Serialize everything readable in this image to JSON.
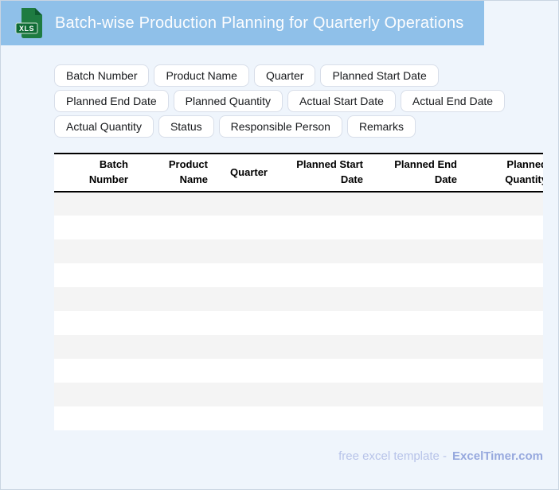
{
  "header": {
    "title": "Batch-wise Production Planning for Quarterly Operations",
    "file_badge": "XLS"
  },
  "colors": {
    "header_bg": "#8FC0E9",
    "page_bg": "#EFF5FC",
    "icon_green": "#1E7B41",
    "icon_band": "#0F6B35",
    "stripe": "#F4F4F4",
    "footer_text": "#B7C3E9",
    "footer_brand": "#97A9DE"
  },
  "field_chips": [
    "Batch Number",
    "Product Name",
    "Quarter",
    "Planned Start Date",
    "Planned End Date",
    "Planned Quantity",
    "Actual Start Date",
    "Actual End Date",
    "Actual Quantity",
    "Status",
    "Responsible Person",
    "Remarks"
  ],
  "table": {
    "columns": [
      "Batch Number",
      "Product Name",
      "Quarter",
      "Planned Start Date",
      "Planned End Date",
      "Planned Quantity"
    ],
    "empty_row_count": 10
  },
  "footer": {
    "text": "free excel template -",
    "brand": "ExcelTimer.com"
  }
}
